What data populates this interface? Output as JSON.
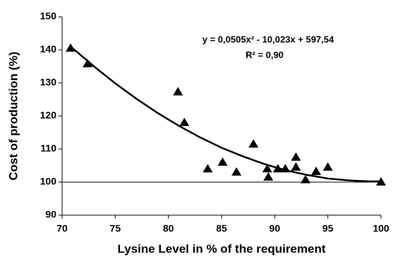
{
  "chart_data": {
    "type": "scatter",
    "x_label": "Lysine Level in % of the requirement",
    "y_label": "Cost of production (%)",
    "annotations": [
      "y = 0,0505x² - 10,023x + 597,54",
      "R² = 0,90"
    ],
    "x": [
      70.8,
      72.4,
      80.9,
      81.5,
      83.7,
      85.1,
      86.4,
      88.0,
      89.3,
      89.4,
      90.3,
      91.0,
      92.0,
      92.0,
      92.9,
      93.9,
      95.0,
      100.0
    ],
    "y": [
      140.5,
      135.8,
      127.3,
      118.0,
      104.0,
      106.0,
      103.0,
      111.5,
      104.0,
      101.5,
      104.0,
      104.0,
      104.5,
      107.5,
      100.7,
      103.2,
      104.5,
      100.0
    ],
    "marker": "triangle",
    "color": "#000000",
    "trendline": {
      "x": [
        71,
        73,
        75,
        77,
        79,
        81,
        83,
        85,
        87,
        89,
        91,
        93,
        95,
        97,
        99,
        100
      ],
      "y": [
        140.5,
        135.0,
        129.9,
        125.2,
        120.9,
        117.0,
        113.5,
        110.4,
        107.8,
        105.5,
        103.6,
        102.2,
        101.1,
        100.5,
        100.2,
        100.2
      ],
      "color": "#000000"
    },
    "reference_line": 100,
    "xlim": [
      70,
      100
    ],
    "xticks": [
      70,
      75,
      80,
      85,
      90,
      95,
      100
    ],
    "ylim": [
      90,
      150
    ],
    "yticks": [
      90,
      100,
      110,
      120,
      130,
      140,
      150
    ]
  }
}
